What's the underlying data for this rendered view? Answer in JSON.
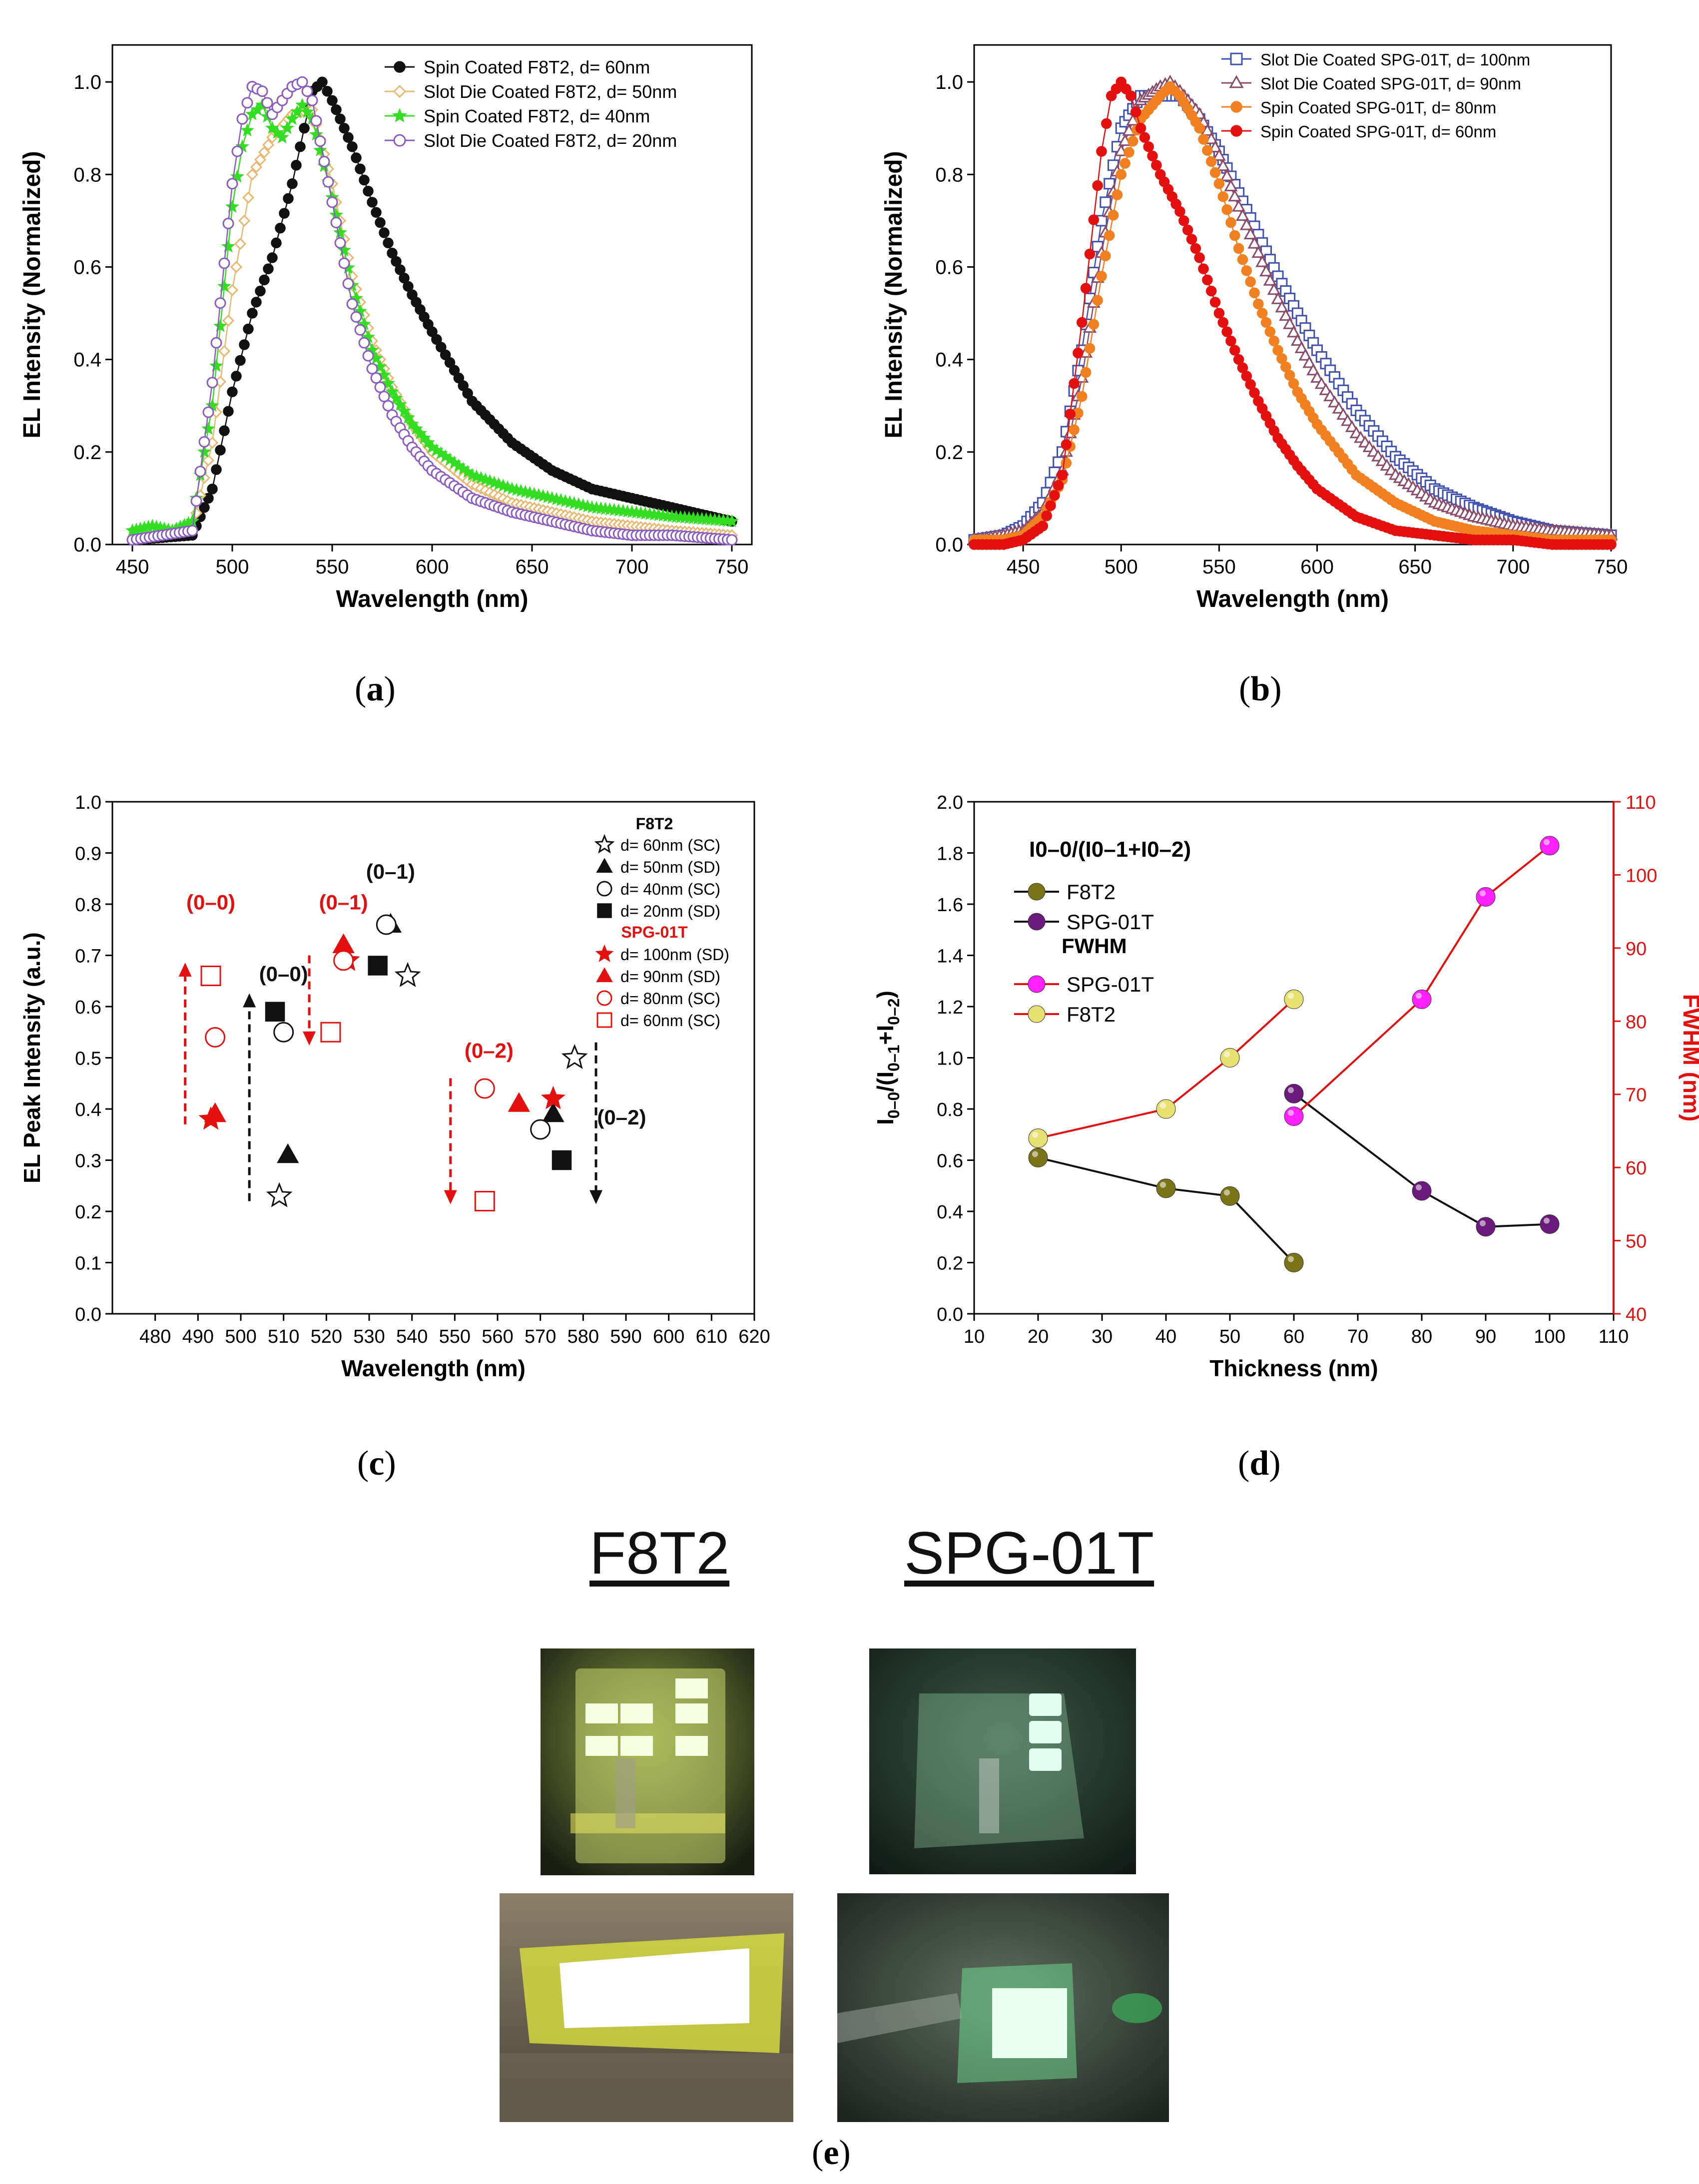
{
  "panel_labels": {
    "a": "a",
    "b": "b",
    "c": "c",
    "d": "d",
    "e": "e"
  },
  "photos": {
    "f8t2_title": "F8T2",
    "spg_title": "SPG-01T"
  },
  "colors": {
    "black": "#111111",
    "orange_light": "#e8b870",
    "green": "#33dd22",
    "violet": "#8a5cc0",
    "blue": "#4050b0",
    "mauve": "#8a4a6a",
    "orange": "#f08020",
    "red": "#e41010",
    "olive": "#7a7418",
    "purple": "#6a1a7a",
    "magenta": "#ff20ff",
    "yellow": "#e8e070"
  },
  "chart_data": [
    {
      "id": "a",
      "type": "line",
      "xlabel": "Wavelength (nm)",
      "ylabel": "EL Intensity (Normalized)",
      "xlim": [
        440,
        760
      ],
      "ylim": [
        0,
        1.08
      ],
      "xticks": [
        450,
        500,
        550,
        600,
        650,
        700,
        750
      ],
      "yticks": [
        0.0,
        0.2,
        0.4,
        0.6,
        0.8,
        1.0
      ],
      "legend_position": "top-right",
      "series": [
        {
          "name": "Spin Coated F8T2, d= 60nm",
          "marker": "filled-circle",
          "color": "#111111",
          "x": [
            450,
            480,
            490,
            500,
            510,
            520,
            530,
            540,
            545,
            550,
            560,
            570,
            580,
            590,
            600,
            620,
            640,
            660,
            680,
            700,
            720,
            750
          ],
          "y": [
            0.01,
            0.02,
            0.12,
            0.33,
            0.5,
            0.62,
            0.78,
            0.98,
            1.0,
            0.96,
            0.86,
            0.74,
            0.63,
            0.54,
            0.46,
            0.31,
            0.22,
            0.16,
            0.12,
            0.1,
            0.08,
            0.05
          ]
        },
        {
          "name": "Slot Die Coated F8T2, d= 50nm",
          "marker": "open-diamond",
          "color": "#e8b870",
          "x": [
            450,
            480,
            490,
            500,
            510,
            520,
            530,
            540,
            550,
            560,
            570,
            580,
            590,
            600,
            620,
            640,
            660,
            680,
            700,
            720,
            750
          ],
          "y": [
            0.01,
            0.03,
            0.22,
            0.55,
            0.8,
            0.88,
            0.93,
            0.94,
            0.78,
            0.58,
            0.44,
            0.34,
            0.26,
            0.2,
            0.13,
            0.09,
            0.07,
            0.05,
            0.04,
            0.03,
            0.02
          ]
        },
        {
          "name": "Spin Coated F8T2, d= 40nm",
          "marker": "filled-star",
          "color": "#33dd22",
          "x": [
            450,
            460,
            470,
            480,
            490,
            500,
            505,
            510,
            515,
            520,
            525,
            530,
            535,
            540,
            550,
            560,
            570,
            580,
            590,
            600,
            620,
            640,
            660,
            680,
            700,
            720,
            750
          ],
          "y": [
            0.03,
            0.04,
            0.03,
            0.05,
            0.3,
            0.73,
            0.86,
            0.93,
            0.95,
            0.9,
            0.88,
            0.92,
            0.95,
            0.92,
            0.75,
            0.56,
            0.42,
            0.33,
            0.26,
            0.21,
            0.15,
            0.12,
            0.1,
            0.08,
            0.07,
            0.06,
            0.05
          ]
        },
        {
          "name": "Slot Die Coated F8T2, d= 20nm",
          "marker": "open-circle",
          "color": "#8a5cc0",
          "x": [
            450,
            480,
            490,
            500,
            505,
            510,
            515,
            520,
            525,
            530,
            535,
            540,
            550,
            560,
            570,
            580,
            590,
            600,
            620,
            640,
            660,
            680,
            700,
            720,
            750
          ],
          "y": [
            0.01,
            0.03,
            0.35,
            0.78,
            0.92,
            0.99,
            0.98,
            0.93,
            0.96,
            0.99,
            1.0,
            0.96,
            0.74,
            0.52,
            0.38,
            0.28,
            0.21,
            0.16,
            0.1,
            0.07,
            0.05,
            0.03,
            0.02,
            0.02,
            0.01
          ]
        }
      ]
    },
    {
      "id": "b",
      "type": "line",
      "xlabel": "Wavelength (nm)",
      "ylabel": "EL Intensity (Normalized)",
      "xlim": [
        425,
        750
      ],
      "ylim": [
        0,
        1.08
      ],
      "xticks": [
        450,
        500,
        550,
        600,
        650,
        700,
        750
      ],
      "yticks": [
        0.0,
        0.2,
        0.4,
        0.6,
        0.8,
        1.0
      ],
      "legend_position": "top-right",
      "series": [
        {
          "name": "Slot Die Coated SPG-01T, d= 100nm",
          "marker": "open-square",
          "color": "#4050b0",
          "x": [
            425,
            440,
            450,
            460,
            470,
            480,
            490,
            500,
            510,
            520,
            530,
            540,
            550,
            560,
            570,
            580,
            590,
            600,
            620,
            640,
            660,
            680,
            700,
            720,
            750
          ],
          "y": [
            0.01,
            0.02,
            0.04,
            0.09,
            0.2,
            0.42,
            0.7,
            0.9,
            0.97,
            0.97,
            0.97,
            0.92,
            0.85,
            0.76,
            0.67,
            0.58,
            0.5,
            0.42,
            0.29,
            0.19,
            0.12,
            0.08,
            0.05,
            0.03,
            0.02
          ]
        },
        {
          "name": "Slot Die Coated SPG-01T, d= 90nm",
          "marker": "open-triangle",
          "color": "#8a4a6a",
          "x": [
            425,
            440,
            450,
            460,
            470,
            480,
            490,
            500,
            510,
            520,
            525,
            530,
            540,
            550,
            560,
            570,
            580,
            590,
            600,
            620,
            640,
            660,
            680,
            700,
            720,
            750
          ],
          "y": [
            0.01,
            0.02,
            0.03,
            0.07,
            0.16,
            0.36,
            0.63,
            0.85,
            0.96,
            0.99,
            1.0,
            0.98,
            0.93,
            0.84,
            0.73,
            0.63,
            0.53,
            0.44,
            0.36,
            0.24,
            0.15,
            0.09,
            0.06,
            0.04,
            0.03,
            0.02
          ]
        },
        {
          "name": "Spin Coated SPG-01T, d= 80nm",
          "marker": "filled-circle",
          "color": "#f08020",
          "x": [
            425,
            440,
            450,
            460,
            470,
            480,
            490,
            500,
            510,
            520,
            525,
            530,
            540,
            550,
            560,
            570,
            580,
            590,
            600,
            620,
            640,
            660,
            680,
            700,
            720,
            750
          ],
          "y": [
            0.01,
            0.01,
            0.02,
            0.06,
            0.14,
            0.32,
            0.58,
            0.8,
            0.92,
            0.97,
            0.99,
            0.97,
            0.9,
            0.78,
            0.64,
            0.52,
            0.42,
            0.33,
            0.26,
            0.15,
            0.09,
            0.05,
            0.03,
            0.02,
            0.01,
            0.01
          ]
        },
        {
          "name": "Spin Coated SPG-01T, d= 60nm",
          "marker": "filled-circle",
          "color": "#e41010",
          "x": [
            425,
            440,
            450,
            460,
            470,
            480,
            490,
            495,
            500,
            505,
            510,
            520,
            530,
            540,
            550,
            560,
            570,
            580,
            590,
            600,
            620,
            640,
            660,
            680,
            700,
            720,
            750
          ],
          "y": [
            0.0,
            0.0,
            0.01,
            0.04,
            0.15,
            0.48,
            0.85,
            0.97,
            1.0,
            0.97,
            0.9,
            0.8,
            0.72,
            0.62,
            0.5,
            0.4,
            0.31,
            0.23,
            0.17,
            0.12,
            0.06,
            0.03,
            0.02,
            0.01,
            0.01,
            0.0,
            0.0
          ]
        }
      ]
    },
    {
      "id": "c",
      "type": "scatter",
      "xlabel": "Wavelength (nm)",
      "ylabel": "EL Peak Intensity (a.u.)",
      "xlim": [
        470,
        620
      ],
      "ylim": [
        0,
        1.0
      ],
      "xticks": [
        480,
        490,
        500,
        510,
        520,
        530,
        540,
        550,
        560,
        570,
        580,
        590,
        600,
        610,
        620
      ],
      "yticks": [
        0.0,
        0.1,
        0.2,
        0.3,
        0.4,
        0.5,
        0.6,
        0.7,
        0.8,
        0.9,
        1.0
      ],
      "legend_position": "top-right",
      "legend_group_titles": {
        "f8t2": "F8T2",
        "spg": "SPG-01T"
      },
      "series": [
        {
          "name": "d= 60nm (SC)",
          "group": "f8t2",
          "marker": "open-star",
          "color": "#111111",
          "x": [
            509,
            539,
            578
          ],
          "y": [
            0.23,
            0.66,
            0.5
          ]
        },
        {
          "name": "d= 50nm (SD)",
          "group": "f8t2",
          "marker": "filled-triangle",
          "color": "#111111",
          "x": [
            511,
            535,
            573
          ],
          "y": [
            0.31,
            0.76,
            0.39
          ]
        },
        {
          "name": "d= 40nm (SC)",
          "group": "f8t2",
          "marker": "open-circle",
          "color": "#111111",
          "x": [
            510,
            534,
            570
          ],
          "y": [
            0.55,
            0.76,
            0.36
          ]
        },
        {
          "name": "d= 20nm (SD)",
          "group": "f8t2",
          "marker": "filled-square",
          "color": "#111111",
          "x": [
            508,
            532,
            575
          ],
          "y": [
            0.59,
            0.68,
            0.3
          ]
        },
        {
          "name": "d= 100nm (SD)",
          "group": "spg",
          "marker": "filled-star",
          "color": "#e41010",
          "x": [
            493,
            525,
            573
          ],
          "y": [
            0.38,
            0.69,
            0.42
          ]
        },
        {
          "name": "d= 90nm (SD)",
          "group": "spg",
          "marker": "filled-triangle",
          "color": "#e41010",
          "x": [
            494,
            524,
            565
          ],
          "y": [
            0.39,
            0.72,
            0.41
          ]
        },
        {
          "name": "d= 80nm (SC)",
          "group": "spg",
          "marker": "open-circle",
          "color": "#e41010",
          "x": [
            494,
            524,
            557
          ],
          "y": [
            0.54,
            0.69,
            0.44
          ]
        },
        {
          "name": "d= 60nm (SC)",
          "group": "spg",
          "marker": "open-square",
          "color": "#e41010",
          "x": [
            493,
            521,
            557
          ],
          "y": [
            0.66,
            0.55,
            0.22
          ]
        }
      ],
      "annotations": [
        {
          "text": "(0–0)",
          "color": "#e41010",
          "x": 493,
          "y": 0.79
        },
        {
          "text": "(0–1)",
          "color": "#e41010",
          "x": 524,
          "y": 0.79
        },
        {
          "text": "(0–2)",
          "color": "#e41010",
          "x": 558,
          "y": 0.5
        },
        {
          "text": "(0–0)",
          "color": "#111111",
          "x": 510,
          "y": 0.65
        },
        {
          "text": "(0–1)",
          "color": "#111111",
          "x": 535,
          "y": 0.85
        },
        {
          "text": "(0–2)",
          "color": "#111111",
          "x": 589,
          "y": 0.37
        }
      ],
      "arrows": [
        {
          "color": "#e41010",
          "x": 487,
          "y_from": 0.37,
          "y_to": 0.68
        },
        {
          "color": "#e41010",
          "x": 516,
          "y_from": 0.7,
          "y_to": 0.53
        },
        {
          "color": "#e41010",
          "x": 549,
          "y_from": 0.46,
          "y_to": 0.22
        },
        {
          "color": "#111111",
          "x": 502,
          "y_from": 0.22,
          "y_to": 0.62
        },
        {
          "color": "#111111",
          "x": 583,
          "y_from": 0.53,
          "y_to": 0.22
        }
      ]
    },
    {
      "id": "d",
      "type": "line",
      "xlabel": "Thickness (nm)",
      "ylabel_left_main": "I",
      "ylabel_left_sub1": "0–0",
      "ylabel_left_mid": "/(I",
      "ylabel_left_sub2": "0–1",
      "ylabel_left_plus": "+I",
      "ylabel_left_sub3": "0–2",
      "ylabel_left_end": ")",
      "ylabel_right": "FWHM (nm)",
      "xlim": [
        10,
        110
      ],
      "ylim_left": [
        0,
        2.0
      ],
      "ylim_right": [
        40,
        110
      ],
      "xticks": [
        10,
        20,
        30,
        40,
        50,
        60,
        70,
        80,
        90,
        100,
        110
      ],
      "yticks_left": [
        0.0,
        0.2,
        0.4,
        0.6,
        0.8,
        1.0,
        1.2,
        1.4,
        1.6,
        1.8,
        2.0
      ],
      "yticks_right": [
        40,
        50,
        60,
        70,
        80,
        90,
        100,
        110
      ],
      "legend_position": "top-left",
      "legend_title_ratio": "I0–0/(I0–1+I0–2)",
      "legend_title_fwhm": "FWHM",
      "series": [
        {
          "name": "F8T2",
          "axis": "left",
          "color": "#7a7418",
          "line": "#111111",
          "x": [
            20,
            40,
            50,
            60
          ],
          "y": [
            0.61,
            0.49,
            0.46,
            0.2
          ]
        },
        {
          "name": "SPG-01T",
          "axis": "left",
          "color": "#6a1a7a",
          "line": "#111111",
          "x": [
            60,
            80,
            90,
            100
          ],
          "y": [
            0.86,
            0.48,
            0.34,
            0.35
          ]
        },
        {
          "name": "SPG-01T",
          "axis": "right",
          "color": "#ff20ff",
          "line": "#e41010",
          "x": [
            60,
            80,
            90,
            100
          ],
          "y": [
            67,
            83,
            97,
            104
          ]
        },
        {
          "name": "F8T2",
          "axis": "right",
          "color": "#e8e070",
          "line": "#e41010",
          "x": [
            20,
            40,
            50,
            60
          ],
          "y": [
            64,
            68,
            75,
            83
          ]
        }
      ]
    }
  ]
}
